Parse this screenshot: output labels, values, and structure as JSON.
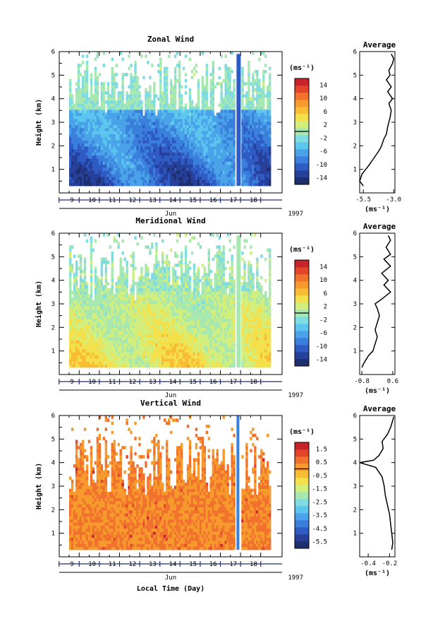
{
  "chart_data": [
    {
      "type": "heatmap",
      "title": "Zonal Wind",
      "ylabel": "Height (km)",
      "yticks": [
        "1",
        "2",
        "3",
        "4",
        "5",
        "6"
      ],
      "ylim": [
        0,
        6
      ],
      "xticks": [
        "9",
        "10",
        "11",
        "12",
        "13",
        "14",
        "15",
        "16",
        "17",
        "18"
      ],
      "xunit": "Jun",
      "year": "1997",
      "colorbar": {
        "unit": "(ms⁻¹)",
        "ticks": [
          "14",
          "10",
          "6",
          "2",
          "-2",
          "-6",
          "-10",
          "-14"
        ],
        "range": [
          -16,
          16
        ]
      },
      "field": {
        "base": -3,
        "sign": -1,
        "amp": 8,
        "lowColumn": true
      },
      "profile": {
        "title": "Average",
        "xunit": "(ms⁻¹)",
        "xticks": [
          "-5.5",
          "-3.0"
        ],
        "xlim": [
          -5.8,
          -2.9
        ],
        "heights": [
          0.3,
          0.5,
          0.8,
          1.0,
          1.2,
          1.5,
          1.8,
          2.0,
          2.3,
          2.5,
          2.8,
          3.0,
          3.2,
          3.5,
          3.8,
          4.0,
          4.3,
          4.5,
          4.8,
          5.0,
          5.2,
          5.5,
          5.7,
          5.9
        ],
        "values": [
          -5.5,
          -5.8,
          -5.6,
          -5.3,
          -5.0,
          -4.6,
          -4.2,
          -4.0,
          -3.8,
          -3.6,
          -3.5,
          -3.4,
          -3.3,
          -3.2,
          -3.4,
          -3.1,
          -3.5,
          -3.2,
          -3.6,
          -3.3,
          -3.4,
          -3.1,
          -3.0,
          -3.2
        ]
      }
    },
    {
      "type": "heatmap",
      "title": "Meridional Wind",
      "ylabel": "Height (km)",
      "yticks": [
        "1",
        "2",
        "3",
        "4",
        "5",
        "6"
      ],
      "ylim": [
        0,
        6
      ],
      "xticks": [
        "9",
        "10",
        "11",
        "12",
        "13",
        "14",
        "15",
        "16",
        "17",
        "18"
      ],
      "xunit": "Jun",
      "year": "1997",
      "colorbar": {
        "unit": "(ms⁻¹)",
        "ticks": [
          "14",
          "10",
          "6",
          "2",
          "-2",
          "-6",
          "-10",
          "-14"
        ],
        "range": [
          -16,
          16
        ]
      },
      "field": {
        "base": -1,
        "sign": 1,
        "amp": 5,
        "lowColumn": false
      },
      "profile": {
        "title": "Average",
        "xunit": "(ms⁻¹)",
        "xticks": [
          "-0.8",
          "0.6"
        ],
        "xlim": [
          -0.9,
          0.7
        ],
        "heights": [
          0.3,
          0.5,
          0.8,
          1.0,
          1.3,
          1.6,
          1.9,
          2.2,
          2.5,
          2.8,
          3.0,
          3.2,
          3.5,
          3.8,
          4.0,
          4.3,
          4.6,
          4.9,
          5.1,
          5.4,
          5.7,
          5.9
        ],
        "values": [
          -0.8,
          -0.7,
          -0.5,
          -0.3,
          -0.2,
          -0.1,
          -0.2,
          -0.1,
          0.0,
          -0.1,
          -0.2,
          0.1,
          0.5,
          0.2,
          0.4,
          0.1,
          0.5,
          0.2,
          0.5,
          0.3,
          0.5,
          0.4
        ]
      }
    },
    {
      "type": "heatmap",
      "title": "Vertical Wind",
      "ylabel": "Height (km)",
      "yticks": [
        "1",
        "2",
        "3",
        "4",
        "5",
        "6"
      ],
      "ylim": [
        0,
        6
      ],
      "xticks": [
        "9",
        "10",
        "11",
        "12",
        "13",
        "14",
        "15",
        "16",
        "17",
        "18"
      ],
      "xunit": "Jun",
      "year": "1997",
      "xlabel": "Local Time (Day)",
      "colorbar": {
        "unit": "(ms⁻¹)",
        "ticks": [
          "1.5",
          "0.5",
          "-0.5",
          "-1.5",
          "-2.5",
          "-3.5",
          "-4.5",
          "-5.5"
        ],
        "range": [
          -6,
          2
        ]
      },
      "field": {
        "base": 0.4,
        "sign": 0,
        "amp": 0.5,
        "lowColumn": false
      },
      "profile": {
        "title": "Average",
        "xunit": "(ms⁻¹)",
        "xticks": [
          "-0.4",
          "-0.2"
        ],
        "xlim": [
          -0.48,
          -0.15
        ],
        "heights": [
          0.3,
          0.6,
          1.0,
          1.4,
          1.8,
          2.2,
          2.6,
          3.0,
          3.4,
          3.8,
          4.0,
          4.1,
          4.3,
          4.6,
          4.9,
          5.2,
          5.5,
          5.8,
          5.95
        ],
        "values": [
          -0.18,
          -0.17,
          -0.18,
          -0.19,
          -0.2,
          -0.22,
          -0.24,
          -0.25,
          -0.27,
          -0.33,
          -0.48,
          -0.35,
          -0.3,
          -0.26,
          -0.27,
          -0.22,
          -0.19,
          -0.17,
          -0.16
        ]
      }
    }
  ]
}
